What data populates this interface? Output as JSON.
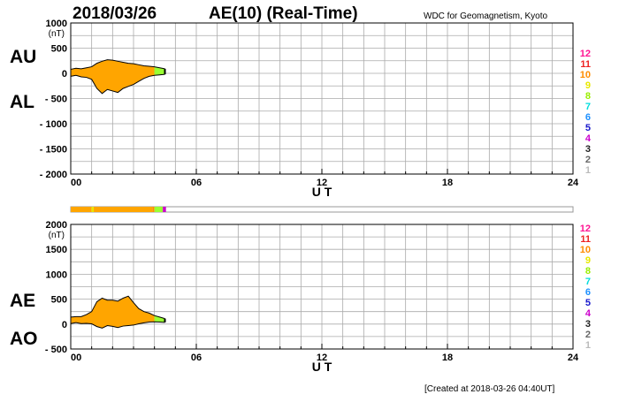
{
  "header": {
    "date": "2018/03/26",
    "title": "AE(10) (Real-Time)",
    "source": "WDC for Geomagnetism, Kyoto"
  },
  "footer": {
    "created": "[Created at 2018-03-26 04:40UT]"
  },
  "colors": {
    "fill": "#ffa500",
    "recent_fill": "#99ff33",
    "latest_fill": "#cc00cc",
    "grid": "#aaaaaa",
    "axis": "#000000",
    "station_bar_border": "#999999"
  },
  "station_count_labels": [
    {
      "label": "12",
      "color": "#ff1493"
    },
    {
      "label": "11",
      "color": "#ee2222"
    },
    {
      "label": "10",
      "color": "#ff8c00"
    },
    {
      "label": "9",
      "color": "#e8e800"
    },
    {
      "label": "8",
      "color": "#99ee00"
    },
    {
      "label": "7",
      "color": "#00dddd"
    },
    {
      "label": "6",
      "color": "#1e90ff"
    },
    {
      "label": "5",
      "color": "#1818cc"
    },
    {
      "label": "4",
      "color": "#cc00cc"
    },
    {
      "label": "3",
      "color": "#222222"
    },
    {
      "label": "2",
      "color": "#666666"
    },
    {
      "label": "1",
      "color": "#bbbbbb"
    }
  ],
  "station_bar": [
    {
      "from": 0.0,
      "to": 1.0,
      "color": "#ffa500"
    },
    {
      "from": 1.0,
      "to": 1.1,
      "color": "#e8e800"
    },
    {
      "from": 1.1,
      "to": 3.9,
      "color": "#ffa500"
    },
    {
      "from": 3.9,
      "to": 4.0,
      "color": "#ff8c00"
    },
    {
      "from": 4.0,
      "to": 4.4,
      "color": "#99ff33"
    },
    {
      "from": 4.4,
      "to": 4.55,
      "color": "#cc00cc"
    }
  ],
  "chart_data": [
    {
      "type": "area",
      "side_labels": {
        "upper": "AU",
        "lower": "AL"
      },
      "unit_label": "(nT)",
      "xlabel": "U T",
      "xlim": [
        0,
        24
      ],
      "xticks": [
        "00",
        "06",
        "12",
        "18",
        "24"
      ],
      "ylim": [
        -2000,
        1000
      ],
      "yticks": [
        "1000",
        "500",
        "0",
        "- 500",
        "- 1000",
        "- 1500",
        "- 2000"
      ],
      "yticks_values": [
        1000,
        500,
        0,
        -500,
        -1000,
        -1500,
        -2000
      ],
      "grid": true,
      "x": [
        0,
        0.25,
        0.5,
        0.75,
        1.0,
        1.25,
        1.5,
        1.75,
        2.0,
        2.25,
        2.5,
        2.75,
        3.0,
        3.25,
        3.5,
        3.75,
        4.0,
        4.25,
        4.5
      ],
      "series": [
        {
          "name": "AU",
          "values": [
            80,
            100,
            90,
            110,
            130,
            200,
            240,
            270,
            260,
            240,
            220,
            200,
            190,
            170,
            150,
            140,
            130,
            110,
            90
          ]
        },
        {
          "name": "AL",
          "values": [
            -60,
            -40,
            -70,
            -80,
            -120,
            -300,
            -400,
            -320,
            -350,
            -380,
            -300,
            -260,
            -220,
            -160,
            -100,
            -60,
            -40,
            -30,
            -20
          ]
        }
      ]
    },
    {
      "type": "area",
      "side_labels": {
        "upper": "AE",
        "lower": "AO"
      },
      "unit_label": "(nT)",
      "xlabel": "U T",
      "xlim": [
        0,
        24
      ],
      "xticks": [
        "00",
        "06",
        "12",
        "18",
        "24"
      ],
      "ylim": [
        -500,
        2000
      ],
      "yticks": [
        "2000",
        "1500",
        "1000",
        "500",
        "0",
        "- 500"
      ],
      "yticks_values": [
        2000,
        1500,
        1000,
        500,
        0,
        -500
      ],
      "grid": true,
      "x": [
        0,
        0.25,
        0.5,
        0.75,
        1.0,
        1.25,
        1.5,
        1.75,
        2.0,
        2.25,
        2.5,
        2.75,
        3.0,
        3.25,
        3.5,
        3.75,
        4.0,
        4.25,
        4.5
      ],
      "series": [
        {
          "name": "AE",
          "values": [
            140,
            150,
            150,
            190,
            250,
            450,
            520,
            480,
            480,
            460,
            520,
            560,
            430,
            310,
            250,
            220,
            170,
            140,
            110
          ]
        },
        {
          "name": "AO",
          "values": [
            10,
            30,
            10,
            15,
            5,
            -50,
            -80,
            -30,
            -45,
            -70,
            -40,
            -30,
            -20,
            5,
            25,
            40,
            45,
            40,
            35
          ]
        }
      ]
    }
  ]
}
